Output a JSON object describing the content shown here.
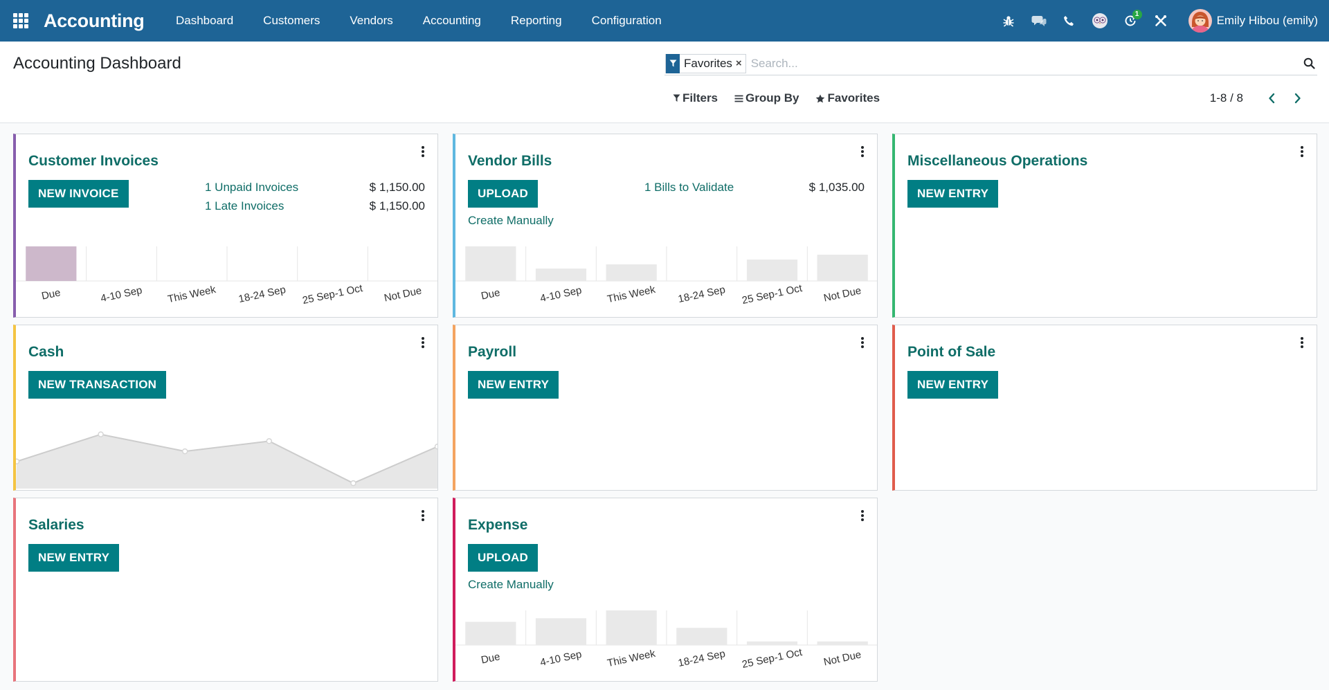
{
  "navbar": {
    "app_title": "Accounting",
    "menu": [
      "Dashboard",
      "Customers",
      "Vendors",
      "Accounting",
      "Reporting",
      "Configuration"
    ],
    "activity_count": "1",
    "user_name": "Emily Hibou (emily)",
    "color": "#1e6496"
  },
  "control_panel": {
    "title": "Accounting Dashboard",
    "facet_value": "Favorites",
    "facet_remove": "×",
    "search_placeholder": "Search...",
    "filters_label": "Filters",
    "group_by_label": "Group By",
    "favorites_label": "Favorites",
    "pager_value": "1-8 / 8"
  },
  "journals": {
    "customer_invoices": {
      "title": "Customer Invoices",
      "color": "#875ead",
      "button": "NEW INVOICE",
      "lines": [
        {
          "label": "1 Unpaid Invoices",
          "amount": "$ 1,150.00"
        },
        {
          "label": "1 Late Invoices",
          "amount": "$ 1,150.00"
        }
      ]
    },
    "vendor_bills": {
      "title": "Vendor Bills",
      "color": "#5fb8e0",
      "button": "UPLOAD",
      "create_manually": "Create Manually",
      "lines": [
        {
          "label": "1 Bills to Validate",
          "amount": "$ 1,035.00"
        }
      ]
    },
    "misc_operations": {
      "title": "Miscellaneous Operations",
      "color": "#35b771",
      "button": "NEW ENTRY"
    },
    "cash": {
      "title": "Cash",
      "color": "#f4c443",
      "button": "NEW TRANSACTION"
    },
    "payroll": {
      "title": "Payroll",
      "color": "#f4a460",
      "button": "NEW ENTRY"
    },
    "point_of_sale": {
      "title": "Point of Sale",
      "color": "#e05c4c",
      "button": "NEW ENTRY"
    },
    "salaries": {
      "title": "Salaries",
      "color": "#e8747c",
      "button": "NEW ENTRY"
    },
    "expense": {
      "title": "Expense",
      "color": "#d01c5c",
      "button": "UPLOAD",
      "create_manually": "Create Manually"
    }
  },
  "chart_data": [
    {
      "type": "bar",
      "journal": "Customer Invoices",
      "categories": [
        "Due",
        "4-10 Sep",
        "This Week",
        "18-24 Sep",
        "25 Sep-1 Oct",
        "Not Due"
      ],
      "values": [
        1150,
        0,
        0,
        0,
        0,
        0
      ],
      "highlight": [
        true,
        false,
        false,
        false,
        false,
        false
      ],
      "colors": {
        "highlight": "#cdb8cb",
        "normal": "#e9e9e9"
      }
    },
    {
      "type": "bar",
      "journal": "Vendor Bills",
      "categories": [
        "Due",
        "4-10 Sep",
        "This Week",
        "18-24 Sep",
        "25 Sep-1 Oct",
        "Not Due"
      ],
      "values": [
        100,
        36,
        48,
        0,
        62,
        76
      ],
      "colors": {
        "normal": "#e9e9e9"
      }
    },
    {
      "type": "area",
      "journal": "Cash",
      "values": [
        40,
        80,
        55,
        70,
        8,
        62
      ],
      "colors": {
        "fill": "#e7e7e7",
        "line": "#cccccc",
        "point": "#d6d6d6"
      }
    },
    {
      "type": "bar",
      "journal": "Expense",
      "categories": [
        "Due",
        "4-10 Sep",
        "This Week",
        "18-24 Sep",
        "25 Sep-1 Oct",
        "Not Due"
      ],
      "values": [
        65,
        75,
        97,
        48,
        10,
        10
      ],
      "colors": {
        "normal": "#e9e9e9"
      }
    }
  ]
}
